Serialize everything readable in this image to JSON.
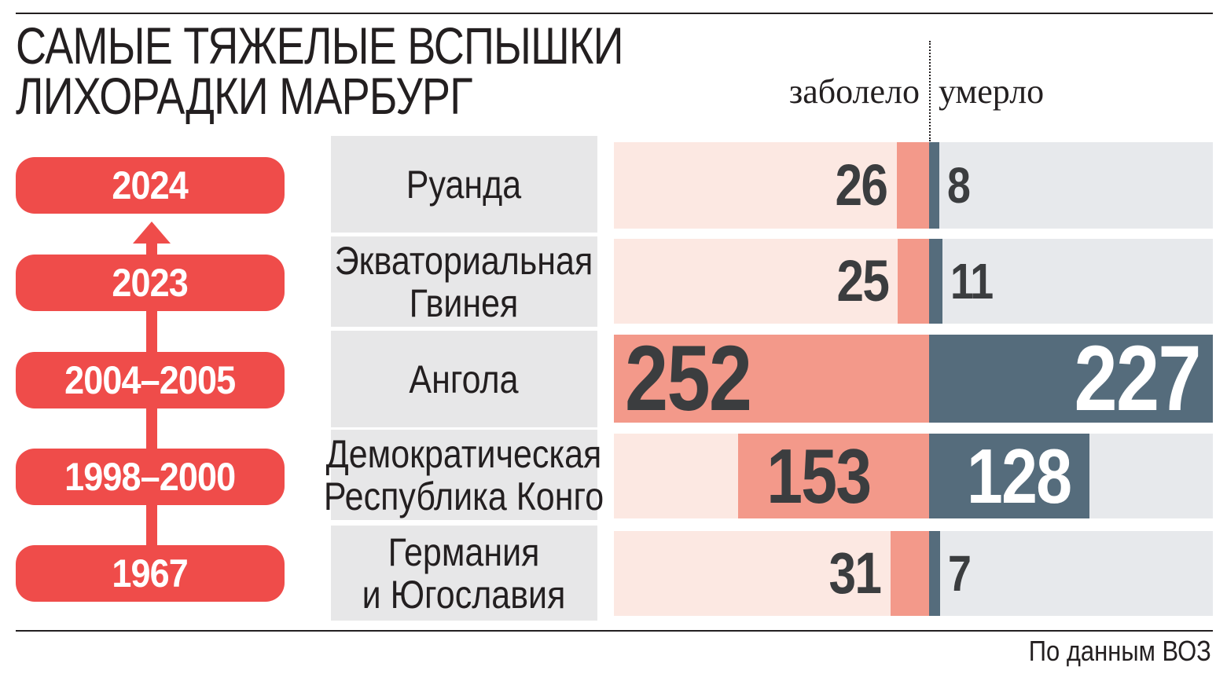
{
  "chart_data": {
    "type": "bar",
    "title_lines": [
      "САМЫЕ ТЯЖЕЛЫЕ ВСПЫШКИ",
      "ЛИХОРАДКИ МАРБУРГ"
    ],
    "series_labels": {
      "cases": "заболело",
      "deaths": "умерло"
    },
    "rows": [
      {
        "year": "2024",
        "country_lines": [
          "Руанда"
        ],
        "cases": 26,
        "deaths": 8
      },
      {
        "year": "2023",
        "country_lines": [
          "Экваториальная",
          "Гвинея"
        ],
        "cases": 25,
        "deaths": 11
      },
      {
        "year": "2004–2005",
        "country_lines": [
          "Ангола"
        ],
        "cases": 252,
        "deaths": 227
      },
      {
        "year": "1998–2000",
        "country_lines": [
          "Демократическая",
          "Республика Конго"
        ],
        "cases": 153,
        "deaths": 128
      },
      {
        "year": "1967",
        "country_lines": [
          "Германия",
          "и Югославия"
        ],
        "cases": 31,
        "deaths": 7
      }
    ],
    "source": "По данным ВОЗ"
  },
  "colors": {
    "accent_red": "#ef4c4a",
    "cases_bar": "#f3998a",
    "cases_background": "#fce8e2",
    "deaths_bar": "#556c7c",
    "deaths_background": "#e7e9ec",
    "country_box": "#e7e7e8"
  }
}
